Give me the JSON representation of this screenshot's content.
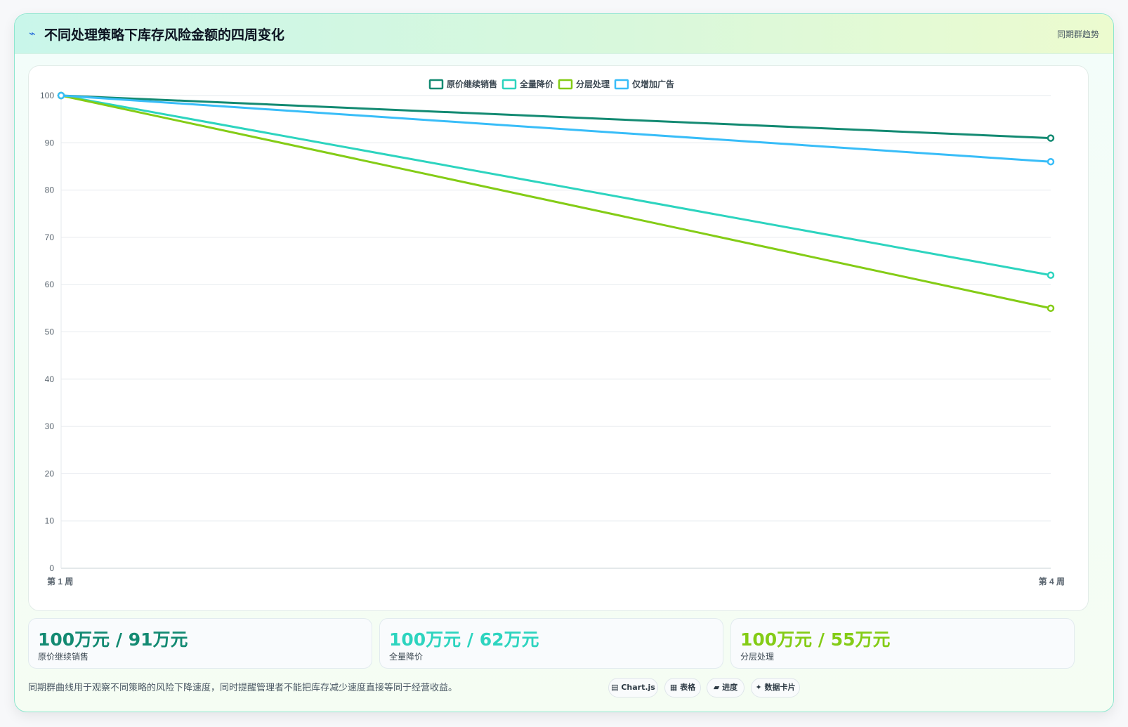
{
  "header": {
    "icon": "lightning-icon",
    "title": "不同处理策略下库存风险金额的四周变化",
    "tag": "同期群趋势"
  },
  "chart_data": {
    "type": "line",
    "categories": [
      "第 1 周",
      "第 4 周"
    ],
    "series": [
      {
        "name": "原价继续销售",
        "values": [
          100,
          91
        ],
        "color": "#138a72"
      },
      {
        "name": "全量降价",
        "values": [
          100,
          62
        ],
        "color": "#2dd4bf"
      },
      {
        "name": "分层处理",
        "values": [
          100,
          55
        ],
        "color": "#84cc16"
      },
      {
        "name": "仅增加广告",
        "values": [
          100,
          86
        ],
        "color": "#38bdf8"
      }
    ],
    "ylim": [
      0,
      100
    ],
    "yticks": [
      "0",
      "10",
      "20",
      "30",
      "40",
      "50",
      "60",
      "70",
      "80",
      "90",
      "100"
    ],
    "grid": true,
    "legend": "top-center",
    "title": "",
    "xlabel": "",
    "ylabel": ""
  },
  "cards": [
    {
      "value": "100万元 / 91万元",
      "label": "原价继续销售",
      "color": "#138a72"
    },
    {
      "value": "100万元 / 62万元",
      "label": "全量降价",
      "color": "#2dd4bf"
    },
    {
      "value": "100万元 / 55万元",
      "label": "分层处理",
      "color": "#84cc16"
    }
  ],
  "footer": {
    "note": "同期群曲线用于观察不同策略的风险下降速度，同时提醒管理者不能把库存减少速度直接等同于经营收益。",
    "pills": [
      "▤ Chart.js",
      "▦ 表格",
      "▰ 进度",
      "✦ 数据卡片"
    ]
  }
}
